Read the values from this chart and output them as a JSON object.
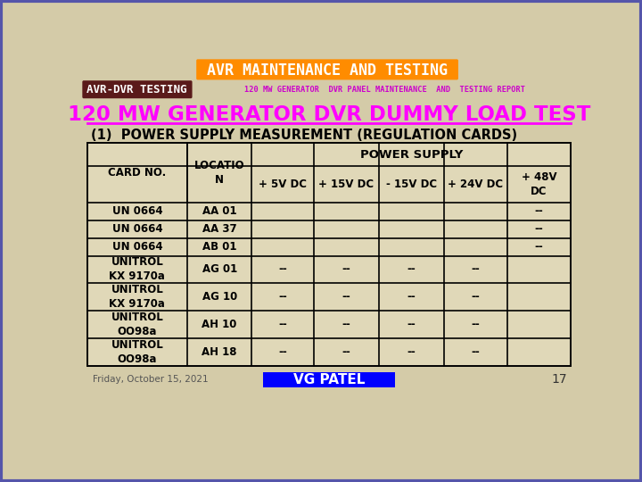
{
  "bg_color": "#d4cba8",
  "title_text": "AVR MAINTENANCE AND TESTING",
  "title_bg": "#ff8c00",
  "title_text_color": "#ffffff",
  "avr_dvr_label": "AVR-DVR TESTING",
  "avr_dvr_bg": "#5a1a1a",
  "avr_dvr_text_color": "#ffffff",
  "subtitle_line": "120 MW GENERATOR  DVR PANEL MAINTENANCE  AND  TESTING REPORT",
  "subtitle_color": "#cc00cc",
  "main_title": "120 MW GENERATOR DVR DUMMY LOAD TEST",
  "main_title_color": "#ff00ff",
  "section_title": "(1)  POWER SUPPLY MEASUREMENT (REGULATION CARDS)",
  "section_title_color": "#000000",
  "col_headers_top": [
    "CARD NO.",
    "LOCATIO\nN"
  ],
  "col_headers_ps": [
    "+ 5V DC",
    "+ 15V DC",
    "- 15V DC",
    "+ 24V DC",
    "+ 48V\nDC"
  ],
  "table_rows": [
    [
      "UN 0664",
      "AA 01",
      "",
      "",
      "",
      "",
      "--"
    ],
    [
      "UN 0664",
      "AA 37",
      "",
      "",
      "",
      "",
      "--"
    ],
    [
      "UN 0664",
      "AB 01",
      "",
      "",
      "",
      "",
      "--"
    ],
    [
      "UNITROL\nKX 9170a",
      "AG 01",
      "--",
      "--",
      "--",
      "--",
      ""
    ],
    [
      "UNITROL\nKX 9170a",
      "AG 10",
      "--",
      "--",
      "--",
      "--",
      ""
    ],
    [
      "UNITROL\nOO98a",
      "AH 10",
      "--",
      "--",
      "--",
      "--",
      ""
    ],
    [
      "UNITROL\nOO98a",
      "AH 18",
      "--",
      "--",
      "--",
      "--",
      ""
    ]
  ],
  "footer_date": "Friday, October 15, 2021",
  "footer_label": "VG PATEL",
  "footer_label_bg": "#0000ff",
  "footer_label_color": "#ffffff",
  "footer_page": "17",
  "table_line_color": "#000000",
  "table_text_color": "#000000",
  "table_bg_light": "#e0d8b8",
  "outer_border_color": "#5555aa"
}
